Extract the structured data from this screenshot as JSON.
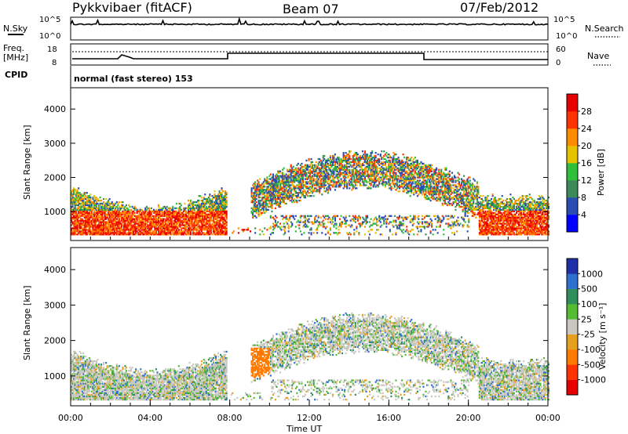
{
  "header": {
    "station": "Pykkvibaer (fitACF)",
    "beam": "Beam 07",
    "date": "07/Feb/2012"
  },
  "status_panels": {
    "nsky_label": "N.Sky",
    "nsky_ticks": [
      "10^5",
      "10^0"
    ],
    "nsearch_label": "N.Search",
    "nsearch_ticks": [
      "10^5",
      "10^0"
    ],
    "freq_label": "Freq.",
    "freq_unit": "[MHz]",
    "freq_ticks": [
      "18",
      "8"
    ],
    "nave_label": "Nave",
    "nave_ticks": [
      "60",
      "0"
    ],
    "cpid_label": "CPID",
    "cpid_text": "normal (fast stereo) 153"
  },
  "chart_data": [
    {
      "type": "heatmap",
      "name": "power",
      "ylabel": "Slant Range [km]",
      "ylim": [
        180,
        4600
      ],
      "yticks": [
        "1000",
        "2000",
        "3000",
        "4000"
      ],
      "xlim_hours": [
        0,
        24
      ],
      "xticks": [
        "00:00",
        "04:00",
        "08:00",
        "12:00",
        "16:00",
        "20:00",
        "00:00"
      ],
      "colorbar": {
        "label": "Power [dB]",
        "ticks": [
          "28",
          "24",
          "20",
          "16",
          "12",
          "8",
          "4"
        ],
        "colors": [
          "#0000ff",
          "#2a4db3",
          "#3b8a5a",
          "#2fbf3a",
          "#e6c200",
          "#ff8c00",
          "#ff3300",
          "#e60000"
        ]
      },
      "features": [
        {
          "hours": [
            0,
            8
          ],
          "range_km": [
            300,
            1800
          ],
          "note": "strong echoes near 500-1000 km"
        },
        {
          "hours": [
            9,
            20
          ],
          "range_km": [
            600,
            2600
          ],
          "note": "arc structure rising then falling"
        },
        {
          "hours": [
            20,
            24
          ],
          "range_km": [
            300,
            1300
          ],
          "note": "strong echoes"
        }
      ]
    },
    {
      "type": "heatmap",
      "name": "velocity",
      "ylabel": "Slant Range [km]",
      "ylim": [
        180,
        4600
      ],
      "yticks": [
        "1000",
        "2000",
        "3000",
        "4000"
      ],
      "xlim_hours": [
        0,
        24
      ],
      "xticks": [
        "00:00",
        "04:00",
        "08:00",
        "12:00",
        "16:00",
        "20:00",
        "00:00"
      ],
      "xlabel": "Time UT",
      "colorbar": {
        "label": "Velocity [m s⁻¹]",
        "ticks": [
          "1000",
          "500",
          "100",
          "25",
          "-25",
          "-100",
          "-500",
          "-1000"
        ],
        "colors": [
          "#1f2fa8",
          "#2f6fd0",
          "#2f8f5a",
          "#55bb33",
          "#c8c8c0",
          "#e6a020",
          "#ff7a00",
          "#ff3300",
          "#e60000"
        ]
      },
      "features": [
        {
          "hours": [
            0,
            8
          ],
          "range_km": [
            300,
            1800
          ],
          "note": "mostly ground scatter grey/orange"
        },
        {
          "hours": [
            9,
            10
          ],
          "range_km": [
            1000,
            1800
          ],
          "note": "orange patch"
        },
        {
          "hours": [
            10,
            20
          ],
          "range_km": [
            500,
            2600
          ],
          "note": "grey arc with green"
        }
      ]
    }
  ]
}
